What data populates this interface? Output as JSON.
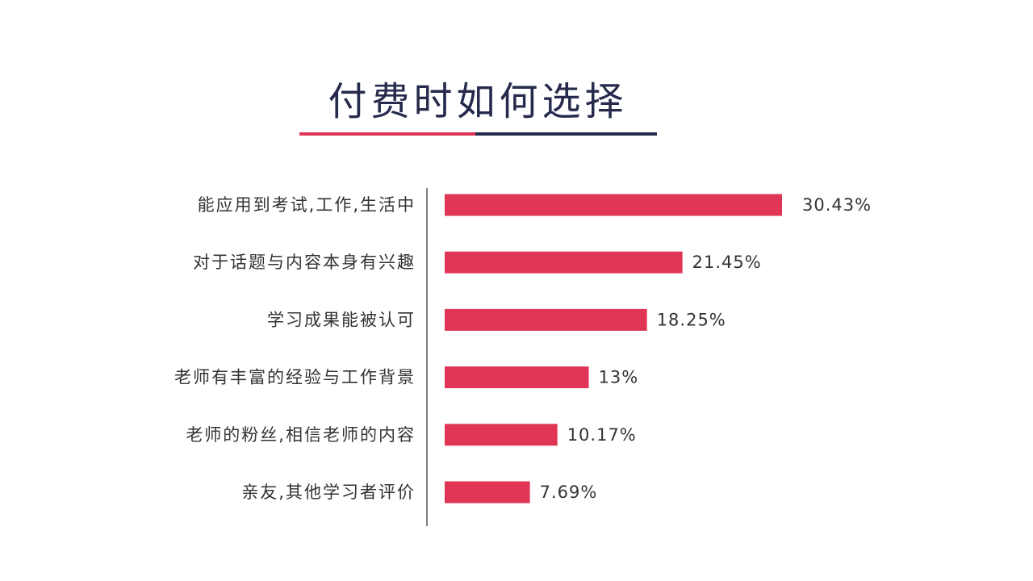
{
  "chart_data": {
    "type": "bar",
    "orientation": "horizontal",
    "title": "付费时如何选择",
    "categories": [
      "能应用到考试,工作,生活中",
      "对于话题与内容本身有兴趣",
      "学习成果能被认可",
      "老师有丰富的经验与工作背景",
      "老师的粉丝,相信老师的内容",
      "亲友,其他学习者评价"
    ],
    "values": [
      30.43,
      21.45,
      18.25,
      13,
      10.17,
      7.69
    ],
    "value_labels": [
      "30.43%",
      "21.45%",
      "18.25%",
      "13%",
      "10.17%",
      "7.69%"
    ],
    "xlabel": "",
    "ylabel": "",
    "xlim": [
      0,
      30.43
    ],
    "grid": false,
    "legend": "none",
    "bar_color": "#e03555"
  },
  "colors": {
    "title": "#262a4d",
    "accent": "#e03555",
    "underline_dark": "#262a4d"
  }
}
